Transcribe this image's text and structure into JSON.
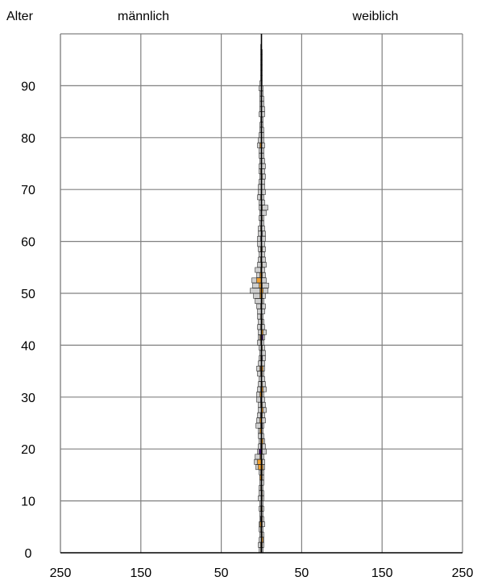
{
  "chart_data": {
    "type": "bar",
    "orientation": "horizontal",
    "subtype": "population-pyramid",
    "ylabel": "Alter",
    "male_label": "männlich",
    "female_label": "weiblich",
    "y_ticks": [
      0,
      10,
      20,
      30,
      40,
      50,
      60,
      70,
      80,
      90
    ],
    "y_range": [
      0,
      100
    ],
    "x_range": [
      -250,
      250
    ],
    "x_tick_values": [
      -250,
      -150,
      -50,
      50,
      150,
      250
    ],
    "x_tick_labels": [
      "250",
      "150",
      "50",
      "50",
      "150",
      "250"
    ],
    "grid": true,
    "colors": {
      "total": "#cfcfcf",
      "nationality_a": "#f0a030",
      "nationality_b": "#4b1a78",
      "edge": "#333333",
      "grid": "#808080",
      "center_line": "#000000"
    },
    "age": [
      0,
      1,
      2,
      3,
      4,
      5,
      6,
      7,
      8,
      9,
      10,
      11,
      12,
      13,
      14,
      15,
      16,
      17,
      18,
      19,
      20,
      21,
      22,
      23,
      24,
      25,
      26,
      27,
      28,
      29,
      30,
      31,
      32,
      33,
      34,
      35,
      36,
      37,
      38,
      39,
      40,
      41,
      42,
      43,
      44,
      45,
      46,
      47,
      48,
      49,
      50,
      51,
      52,
      53,
      54,
      55,
      56,
      57,
      58,
      59,
      60,
      61,
      62,
      63,
      64,
      65,
      66,
      67,
      68,
      69,
      70,
      71,
      72,
      73,
      74,
      75,
      76,
      77,
      78,
      79,
      80,
      81,
      82,
      83,
      84,
      85,
      86,
      87,
      88,
      89,
      90,
      91,
      92,
      93,
      94,
      95,
      96,
      97,
      98,
      99
    ],
    "series": [
      {
        "name": "männlich",
        "values": [
          3,
          4,
          3,
          2,
          3,
          3,
          2,
          2,
          3,
          2,
          4,
          3,
          3,
          2,
          2,
          3,
          7,
          9,
          8,
          5,
          4,
          3,
          4,
          4,
          7,
          6,
          5,
          4,
          4,
          6,
          6,
          5,
          4,
          3,
          5,
          6,
          4,
          3,
          2,
          3,
          5,
          4,
          4,
          5,
          4,
          5,
          5,
          6,
          8,
          10,
          14,
          11,
          12,
          6,
          8,
          5,
          4,
          3,
          4,
          5,
          5,
          4,
          4,
          2,
          3,
          2,
          3,
          3,
          5,
          4,
          4,
          3,
          2,
          3,
          3,
          2,
          3,
          3,
          5,
          4,
          3,
          2,
          2,
          1,
          3,
          2,
          2,
          2,
          2,
          3,
          2,
          1,
          1,
          1,
          1,
          1,
          1,
          1,
          0,
          0
        ]
      },
      {
        "name": "weiblich",
        "values": [
          2,
          3,
          3,
          3,
          2,
          4,
          3,
          2,
          3,
          2,
          3,
          3,
          2,
          3,
          3,
          3,
          4,
          4,
          3,
          6,
          5,
          4,
          3,
          2,
          3,
          5,
          4,
          6,
          5,
          4,
          3,
          6,
          5,
          4,
          3,
          4,
          4,
          5,
          5,
          4,
          3,
          4,
          6,
          4,
          3,
          2,
          4,
          5,
          3,
          5,
          8,
          9,
          6,
          5,
          4,
          6,
          5,
          4,
          5,
          4,
          5,
          5,
          4,
          3,
          3,
          6,
          8,
          4,
          3,
          5,
          4,
          4,
          5,
          4,
          5,
          4,
          3,
          3,
          4,
          3,
          3,
          3,
          2,
          2,
          4,
          4,
          3,
          3,
          2,
          2,
          1,
          1,
          1,
          1,
          1,
          1,
          1,
          0,
          0,
          0
        ]
      },
      {
        "name": "",
        "values": [
          1,
          1,
          0,
          0,
          1,
          2,
          1,
          0,
          1,
          0,
          0,
          0,
          1,
          0,
          2,
          1,
          4,
          5,
          2,
          2,
          0,
          1,
          0,
          2,
          1,
          2,
          1,
          0,
          1,
          1,
          2,
          1,
          0,
          0,
          1,
          2,
          0,
          1,
          0,
          0,
          1,
          2,
          0,
          1,
          0,
          1,
          0,
          1,
          0,
          2,
          2,
          3,
          6,
          2,
          1,
          0,
          1,
          0,
          1,
          0,
          0,
          0,
          1,
          0,
          0,
          0,
          0,
          0,
          1,
          0,
          0,
          0,
          0,
          1,
          0,
          0,
          0,
          0,
          2,
          0,
          0,
          0,
          0,
          0,
          0,
          0,
          0,
          0,
          0,
          0,
          0,
          0,
          0,
          0,
          0,
          0,
          0,
          0,
          0,
          0
        ],
        "side": "male"
      },
      {
        "name": "",
        "values": [
          0,
          1,
          2,
          1,
          0,
          1,
          1,
          0,
          1,
          0,
          1,
          1,
          0,
          0,
          1,
          1,
          2,
          1,
          0,
          1,
          1,
          2,
          0,
          0,
          1,
          0,
          1,
          2,
          1,
          0,
          1,
          2,
          1,
          0,
          1,
          2,
          0,
          1,
          0,
          1,
          0,
          0,
          2,
          0,
          1,
          0,
          0,
          0,
          1,
          1,
          2,
          1,
          0,
          1,
          0,
          1,
          0,
          0,
          1,
          0,
          0,
          0,
          0,
          0,
          1,
          0,
          1,
          0,
          0,
          0,
          0,
          0,
          1,
          0,
          0,
          0,
          0,
          0,
          0,
          0,
          0,
          0,
          0,
          0,
          0,
          0,
          0,
          0,
          0,
          0,
          0,
          0,
          0,
          0,
          0,
          0,
          0,
          0,
          0,
          0
        ],
        "side": "female"
      },
      {
        "name": "",
        "values": [
          0,
          0,
          0,
          0,
          0,
          0,
          1,
          0,
          0,
          0,
          0,
          0,
          0,
          0,
          0,
          0,
          0,
          0,
          1,
          3,
          1,
          0,
          0,
          0,
          0,
          0,
          1,
          0,
          0,
          1,
          0,
          0,
          0,
          0,
          0,
          1,
          0,
          0,
          0,
          0,
          0,
          1,
          0,
          0,
          0,
          0,
          0,
          0,
          0,
          0,
          0,
          0,
          0,
          0,
          0,
          0,
          0,
          0,
          0,
          0,
          1,
          0,
          0,
          0,
          0,
          0,
          0,
          0,
          0,
          0,
          0,
          0,
          0,
          0,
          0,
          0,
          0,
          0,
          0,
          0,
          0,
          0,
          0,
          0,
          0,
          0,
          0,
          0,
          0,
          0,
          0,
          0,
          0,
          0,
          0,
          0,
          0,
          0,
          0,
          0
        ],
        "side": "male"
      },
      {
        "name": "",
        "values": [
          0,
          0,
          0,
          0,
          0,
          0,
          0,
          0,
          0,
          0,
          0,
          0,
          0,
          0,
          0,
          0,
          0,
          0,
          0,
          0,
          0,
          0,
          0,
          0,
          1,
          0,
          0,
          0,
          0,
          0,
          0,
          0,
          0,
          0,
          0,
          0,
          0,
          1,
          0,
          0,
          0,
          2,
          0,
          0,
          0,
          0,
          0,
          0,
          0,
          0,
          0,
          0,
          0,
          0,
          0,
          0,
          0,
          0,
          0,
          0,
          0,
          1,
          0,
          0,
          0,
          0,
          0,
          0,
          0,
          0,
          0,
          0,
          0,
          0,
          0,
          0,
          0,
          0,
          0,
          0,
          0,
          0,
          0,
          0,
          0,
          0,
          0,
          0,
          0,
          0,
          0,
          0,
          0,
          0,
          0,
          0,
          0,
          0,
          0,
          0
        ],
        "side": "female"
      }
    ]
  }
}
